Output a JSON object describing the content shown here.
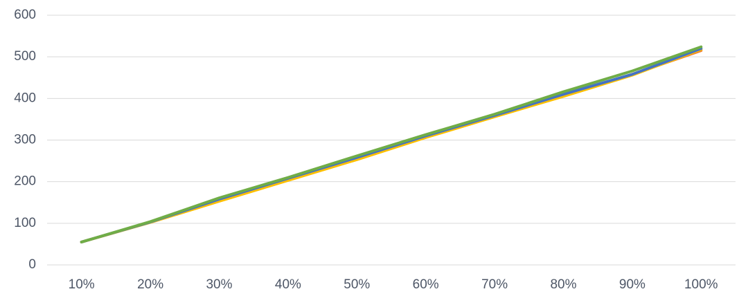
{
  "chart_data": {
    "type": "line",
    "categories": [
      "10%",
      "20%",
      "30%",
      "40%",
      "50%",
      "60%",
      "70%",
      "80%",
      "90%",
      "100%"
    ],
    "series": [
      {
        "color": "#ed7d31",
        "values": [
          55,
          103,
          157,
          206,
          257,
          309,
          358,
          408,
          458,
          515
        ]
      },
      {
        "color": "#ffc000",
        "values": [
          55,
          102,
          153,
          203,
          253,
          306,
          356,
          405,
          456,
          518
        ]
      },
      {
        "color": "#4472c4",
        "values": [
          55,
          103,
          158,
          208,
          258,
          310,
          359,
          410,
          458,
          520
        ]
      },
      {
        "color": "#70ad47",
        "values": [
          55,
          104,
          161,
          210,
          262,
          313,
          362,
          416,
          466,
          524
        ]
      }
    ],
    "ylim": [
      0,
      600
    ],
    "yticks": [
      0,
      100,
      200,
      300,
      400,
      500,
      600
    ],
    "grid": true
  }
}
